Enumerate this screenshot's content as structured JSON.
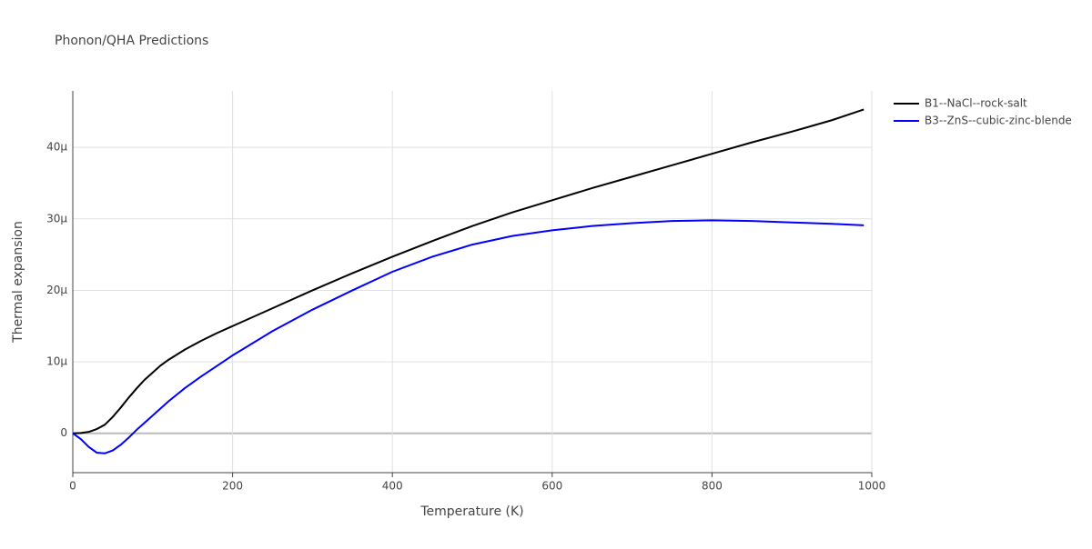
{
  "chart_data": {
    "type": "line",
    "title": "Phonon/QHA Predictions",
    "x_label": "Temperature (K)",
    "y_label": "Thermal expansion",
    "x": [
      0,
      10,
      20,
      30,
      40,
      50,
      60,
      70,
      80,
      90,
      100,
      110,
      120,
      140,
      160,
      180,
      200,
      250,
      300,
      350,
      400,
      450,
      500,
      550,
      600,
      650,
      700,
      750,
      800,
      850,
      900,
      950,
      990
    ],
    "series": [
      {
        "name": "B1--NaCl--rock-salt",
        "color": "#000000",
        "values": [
          0,
          0.05,
          0.2,
          0.6,
          1.2,
          2.3,
          3.6,
          5,
          6.3,
          7.5,
          8.5,
          9.5,
          10.3,
          11.7,
          12.9,
          14,
          15,
          17.5,
          20,
          22.4,
          24.7,
          26.9,
          29,
          30.9,
          32.6,
          34.3,
          35.9,
          37.5,
          39.1,
          40.7,
          42.2,
          43.8,
          45.3
        ]
      },
      {
        "name": "B3--ZnS--cubic-zinc-blende",
        "color": "#0000ff",
        "values": [
          0,
          -0.8,
          -1.9,
          -2.7,
          -2.8,
          -2.4,
          -1.6,
          -0.6,
          0.5,
          1.5,
          2.5,
          3.5,
          4.5,
          6.3,
          7.9,
          9.4,
          10.9,
          14.3,
          17.3,
          20,
          22.6,
          24.7,
          26.4,
          27.6,
          28.4,
          29,
          29.4,
          29.7,
          29.8,
          29.7,
          29.5,
          29.3,
          29.1
        ]
      }
    ],
    "xlim": [
      0,
      1000
    ],
    "xticks": [
      0,
      200,
      400,
      600,
      800,
      1000
    ],
    "ylim": [
      -5.5,
      47.9
    ],
    "yticks": [
      0,
      {
        "value": 10,
        "label": "10μ"
      },
      {
        "value": 20,
        "label": "20μ"
      },
      {
        "value": 30,
        "label": "30μ"
      },
      {
        "value": 40,
        "label": "40μ"
      }
    ],
    "grid": true,
    "legend": "outside-right"
  }
}
